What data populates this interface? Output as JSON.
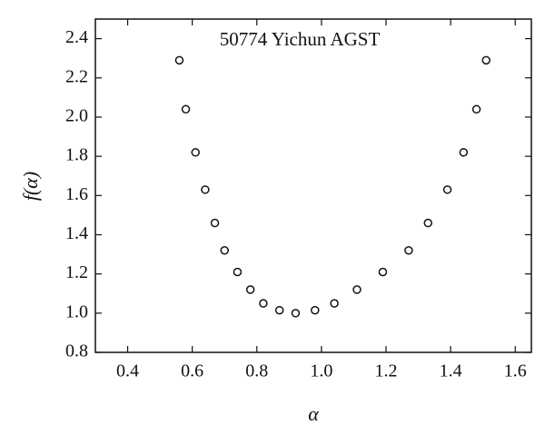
{
  "chart_data": {
    "type": "scatter",
    "title": "50774 Yichun AGST",
    "x_label": "α",
    "y_label": "f(α)",
    "x": [
      0.56,
      0.58,
      0.61,
      0.64,
      0.67,
      0.7,
      0.74,
      0.78,
      0.82,
      0.87,
      0.92,
      0.98,
      1.04,
      1.11,
      1.19,
      1.27,
      1.33,
      1.39,
      1.44,
      1.48,
      1.51
    ],
    "values": [
      2.29,
      2.04,
      1.82,
      1.63,
      1.46,
      1.32,
      1.21,
      1.12,
      1.05,
      1.015,
      1.0,
      1.015,
      1.05,
      1.12,
      1.21,
      1.32,
      1.46,
      1.63,
      1.82,
      2.04,
      2.29
    ],
    "color": "#111111",
    "xlim": [
      0.3,
      1.65
    ],
    "ylim": [
      0.8,
      2.5
    ],
    "xticks": [
      {
        "value": 0.4,
        "label": "0.4"
      },
      {
        "value": 0.6,
        "label": "0.6"
      },
      {
        "value": 0.8,
        "label": "0.8"
      },
      {
        "value": 1.0,
        "label": "1.0"
      },
      {
        "value": 1.2,
        "label": "1.2"
      },
      {
        "value": 1.4,
        "label": "1.4"
      },
      {
        "value": 1.6,
        "label": "1.6"
      }
    ],
    "yticks": [
      {
        "value": 0.8,
        "label": "0.8"
      },
      {
        "value": 1.0,
        "label": "1.0"
      },
      {
        "value": 1.2,
        "label": "1.2"
      },
      {
        "value": 1.4,
        "label": "1.4"
      },
      {
        "value": 1.6,
        "label": "1.6"
      },
      {
        "value": 1.8,
        "label": "1.8"
      },
      {
        "value": 2.0,
        "label": "2.0"
      },
      {
        "value": 2.2,
        "label": "2.2"
      },
      {
        "value": 2.4,
        "label": "2.4"
      }
    ]
  }
}
